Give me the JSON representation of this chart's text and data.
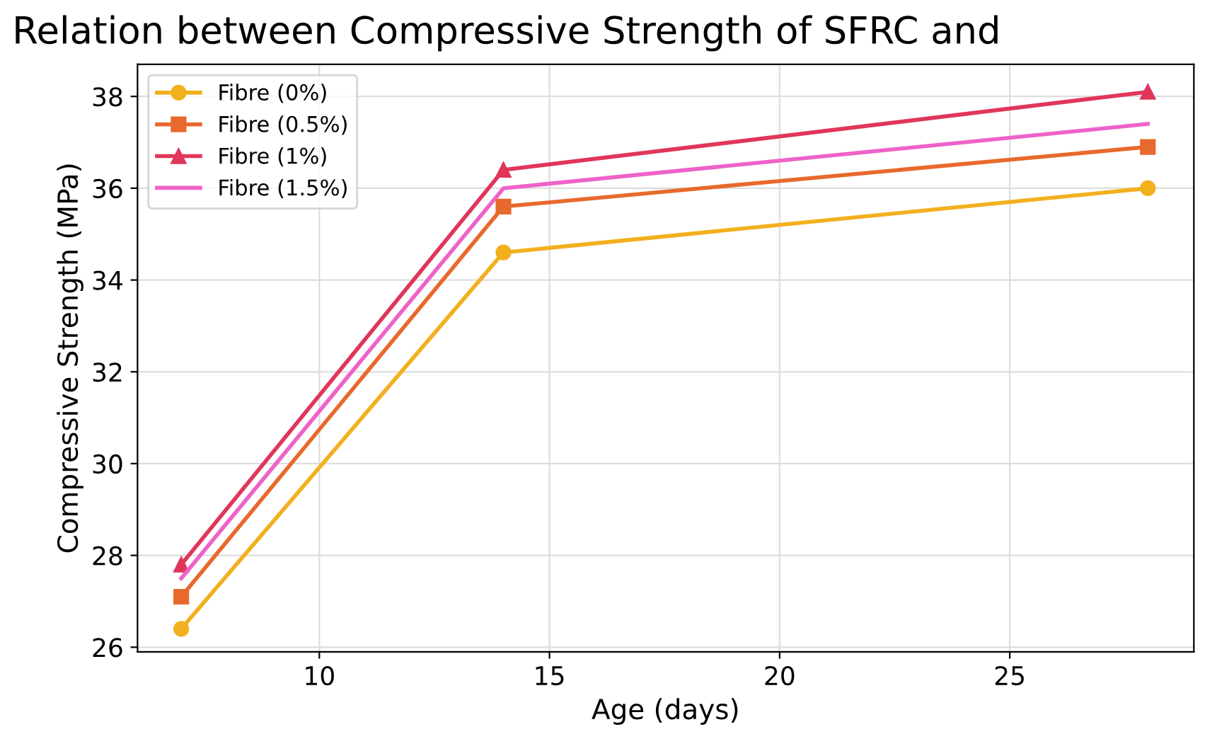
{
  "chart_data": {
    "type": "line",
    "title": "Relation between Compressive Strength of SFRC and",
    "xlabel": "Age (days)",
    "ylabel": "Compressive Strength (MPa)",
    "x": [
      7,
      14,
      28
    ],
    "series": [
      {
        "name": "Fibre (0%)",
        "color": "#f2b01e",
        "marker": "circle",
        "values": [
          26.4,
          34.6,
          36.0
        ]
      },
      {
        "name": "Fibre (0.5%)",
        "color": "#e8692d",
        "marker": "square",
        "values": [
          27.1,
          35.6,
          36.9
        ]
      },
      {
        "name": "Fibre (1%)",
        "color": "#e0365a",
        "marker": "triangle",
        "values": [
          27.8,
          36.4,
          38.1
        ]
      },
      {
        "name": "Fibre (1.5%)",
        "color": "#ee62c8",
        "marker": "none",
        "values": [
          27.5,
          36.0,
          37.4
        ]
      }
    ],
    "xlim": [
      6.05,
      29.0
    ],
    "ylim": [
      25.9,
      38.7
    ],
    "xticks": [
      10,
      15,
      20,
      25
    ],
    "yticks": [
      26,
      28,
      30,
      32,
      34,
      36,
      38
    ],
    "grid": true,
    "legend": "top left",
    "line_style": "solid"
  }
}
